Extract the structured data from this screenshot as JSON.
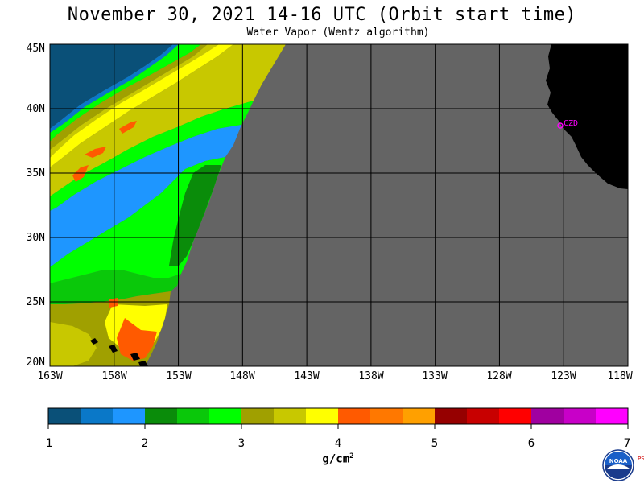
{
  "header": {
    "title": "November 30, 2021  14-16 UTC  (Orbit start time)",
    "subtitle": "Water Vapor (Wentz algorithm)"
  },
  "map": {
    "lat_labels": [
      "45N",
      "40N",
      "35N",
      "30N",
      "25N",
      "20N"
    ],
    "lon_labels": [
      "163W",
      "158W",
      "153W",
      "148W",
      "143W",
      "138W",
      "133W",
      "128W",
      "123W",
      "118W"
    ],
    "lat_range": [
      20,
      45
    ],
    "lon_range": [
      -163,
      -118
    ],
    "station_label": "CZD",
    "station_color": "#ff00ff",
    "no_data_color": "#646464",
    "land_color": "#000000"
  },
  "colorbar": {
    "tick_labels": [
      "1",
      "2",
      "3",
      "4",
      "5",
      "6",
      "7"
    ],
    "range": [
      1,
      7
    ],
    "units_text": "g/cm",
    "units_sup": "2",
    "colors": [
      "#0a5078",
      "#0a78c8",
      "#1e96ff",
      "#0a8c0a",
      "#0ac80a",
      "#00ff00",
      "#a0a000",
      "#c8c800",
      "#ffff00",
      "#ff5a00",
      "#ff7800",
      "#ffa000",
      "#960000",
      "#c80000",
      "#ff0000",
      "#a000a0",
      "#c800c8",
      "#ff00ff"
    ]
  },
  "logo": {
    "text": "NOAA",
    "side_text": "PSL"
  }
}
